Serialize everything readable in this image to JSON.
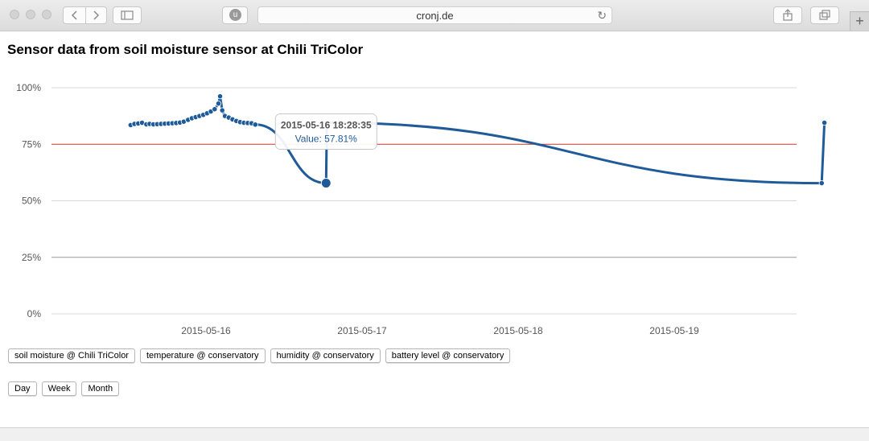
{
  "browser": {
    "url": "cronj.de",
    "extension_badge": "u",
    "new_tab": "+"
  },
  "page": {
    "title": "Sensor data from soil moisture sensor at Chili TriColor"
  },
  "chart_data": {
    "type": "line",
    "ylim": [
      0,
      100
    ],
    "ytick_labels": [
      "0%",
      "25%",
      "50%",
      "75%",
      "100%"
    ],
    "x_ticks": [
      "2015-05-16",
      "2015-05-17",
      "2015-05-18",
      "2015-05-19"
    ],
    "threshold": {
      "value": 75,
      "color": "#c0392b"
    },
    "series": [
      {
        "color": "#1f5b99",
        "points": [
          [
            "2015-05-15 12:25",
            83.5
          ],
          [
            "2015-05-15 13:00",
            84.0
          ],
          [
            "2015-05-15 13:35",
            84.2
          ],
          [
            "2015-05-15 14:10",
            84.5
          ],
          [
            "2015-05-15 14:50",
            83.8
          ],
          [
            "2015-05-15 15:20",
            84.0
          ],
          [
            "2015-05-15 15:55",
            83.8
          ],
          [
            "2015-05-15 16:30",
            83.9
          ],
          [
            "2015-05-15 17:05",
            84.0
          ],
          [
            "2015-05-15 17:40",
            84.1
          ],
          [
            "2015-05-15 18:15",
            84.2
          ],
          [
            "2015-05-15 18:50",
            84.3
          ],
          [
            "2015-05-15 19:25",
            84.4
          ],
          [
            "2015-05-15 20:00",
            84.6
          ],
          [
            "2015-05-15 20:35",
            85.0
          ],
          [
            "2015-05-15 21:15",
            85.8
          ],
          [
            "2015-05-15 21:50",
            86.5
          ],
          [
            "2015-05-15 22:25",
            87.0
          ],
          [
            "2015-05-15 23:00",
            87.5
          ],
          [
            "2015-05-15 23:35",
            88.0
          ],
          [
            "2015-05-16 00:10",
            88.7
          ],
          [
            "2015-05-16 00:45",
            89.5
          ],
          [
            "2015-05-16 01:20",
            90.5
          ],
          [
            "2015-05-16 01:55",
            93.0
          ],
          [
            "2015-05-16 02:10",
            96.2
          ],
          [
            "2015-05-16 02:30",
            90.0
          ],
          [
            "2015-05-16 02:55",
            87.5
          ],
          [
            "2015-05-16 03:30",
            86.8
          ],
          [
            "2015-05-16 04:05",
            86.0
          ],
          [
            "2015-05-16 04:40",
            85.3
          ],
          [
            "2015-05-16 05:15",
            84.8
          ],
          [
            "2015-05-16 05:50",
            84.5
          ],
          [
            "2015-05-16 06:25",
            84.4
          ],
          [
            "2015-05-16 07:00",
            84.3
          ],
          [
            "2015-05-16 07:35",
            83.7
          ],
          [
            "2015-05-16 18:28",
            57.81
          ],
          [
            "2015-05-16 18:35",
            84.5
          ],
          [
            "2015-05-19 22:40",
            57.8
          ],
          [
            "2015-05-19 23:05",
            84.5
          ]
        ],
        "highlight_index": 35
      }
    ],
    "tooltip": {
      "time": "2015-05-16 18:28:35",
      "value_label": "Value: 57.81%"
    }
  },
  "sensor_buttons": [
    "soil moisture @ Chili TriColor",
    "temperature @ conservatory",
    "humidity @ conservatory",
    "battery level @ conservatory"
  ],
  "range_buttons": [
    "Day",
    "Week",
    "Month"
  ]
}
